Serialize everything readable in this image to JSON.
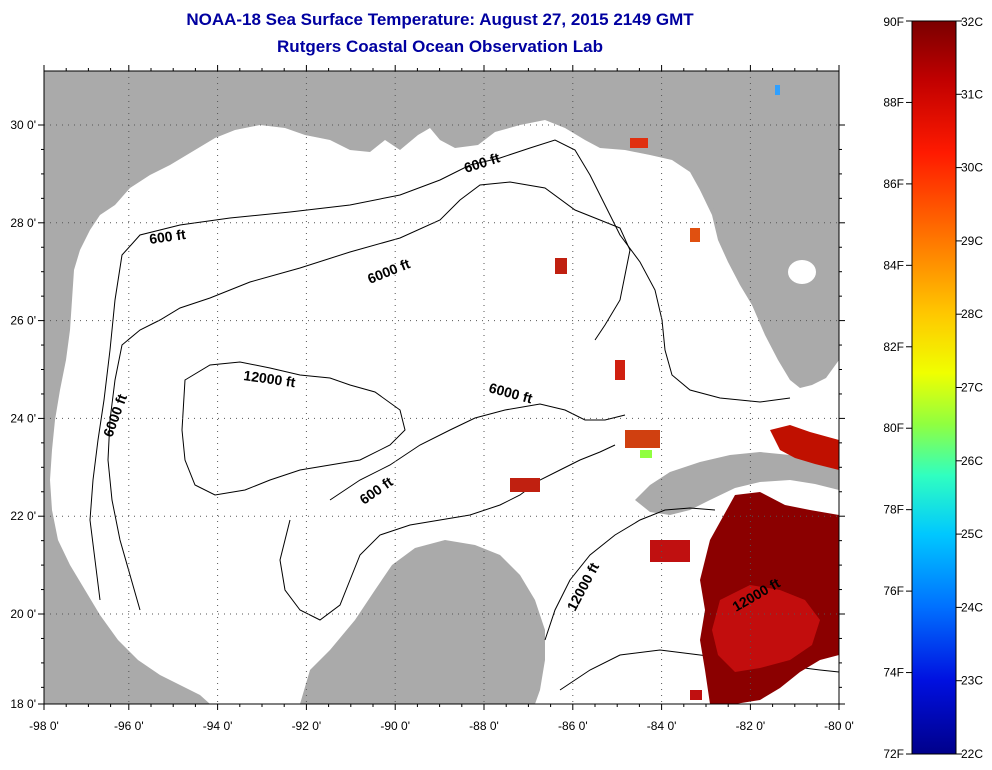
{
  "title": "NOAA-18 Sea Surface Temperature:  August 27, 2015 2149 GMT",
  "subtitle": "Rutgers Coastal Ocean Observation Lab",
  "lat_labels": [
    "30 0'",
    "28 0'",
    "26 0'",
    "24 0'",
    "22 0'",
    "20 0'",
    "18 0'"
  ],
  "lon_labels": [
    "-98 0'",
    "-96 0'",
    "-94 0'",
    "-92 0'",
    "-90 0'",
    "-88 0'",
    "-86 0'",
    "-84 0'",
    "-82 0'",
    "-80 0'"
  ],
  "contour_labels": {
    "c600_nw": "600 ft",
    "c600_n": "600 ft",
    "c6000_n": "6000 ft",
    "c6000_w": "6000 ft",
    "c12000_c": "12000 ft",
    "c6000_e": "6000 ft",
    "c600_yuc": "600 ft",
    "c12000_e": "12000 ft",
    "c12000_carib": "12000 ft"
  },
  "colorbar": {
    "f_labels": [
      "90F",
      "88F",
      "86F",
      "84F",
      "82F",
      "80F",
      "78F",
      "76F",
      "74F",
      "72F"
    ],
    "c_labels": [
      "32C",
      "31C",
      "30C",
      "29C",
      "28C",
      "27C",
      "26C",
      "25C",
      "24C",
      "23C",
      "22C"
    ]
  },
  "colors": {
    "land": "#aaaaaa",
    "title": "#0000a0",
    "warm_sst": "#8b0000"
  }
}
